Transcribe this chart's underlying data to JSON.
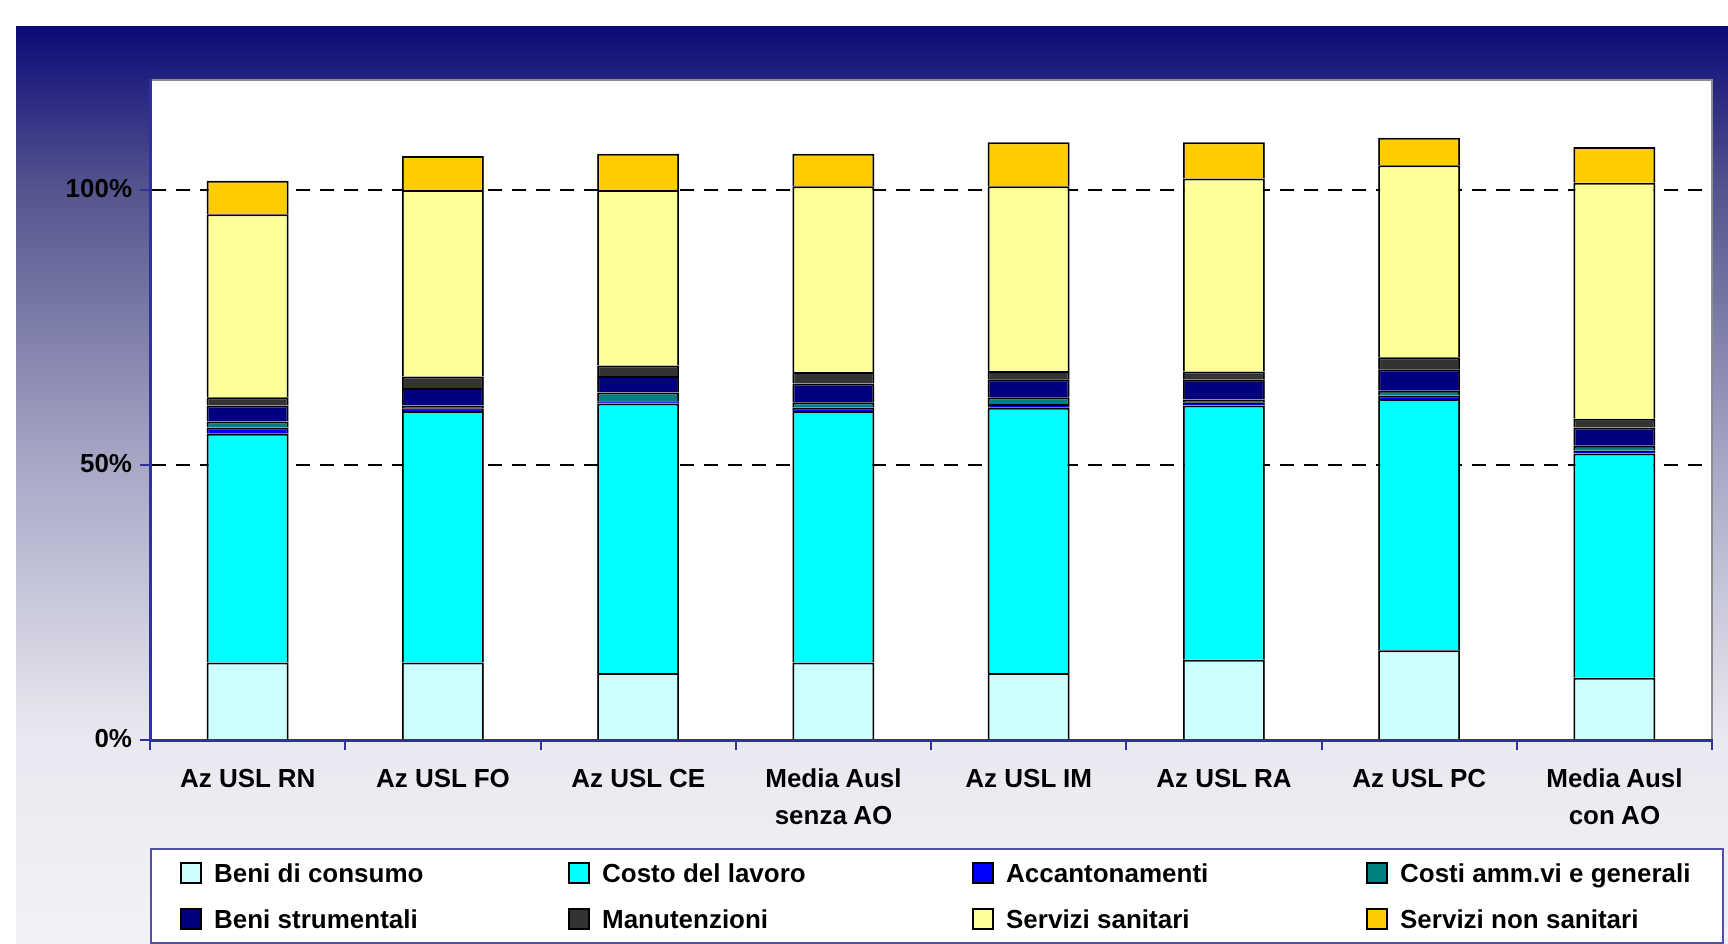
{
  "chart_data": {
    "type": "bar",
    "stacked": true,
    "categories": [
      "Az USL RN",
      "Az USL FO",
      "Az USL CE",
      "Media Ausl senza AO",
      "Az USL IM",
      "Az USL RA",
      "Az USL PC",
      "Media Ausl con AO"
    ],
    "series": [
      {
        "name": "Beni di consumo",
        "color": "#ccffff",
        "values": [
          14.1,
          14.1,
          12.2,
          14.1,
          12.2,
          14.6,
          16.3,
          11.3
        ]
      },
      {
        "name": "Costo del lavoro",
        "color": "#00ffff",
        "values": [
          41.6,
          45.7,
          49.0,
          45.7,
          48.2,
          46.2,
          45.7,
          40.8
        ]
      },
      {
        "name": "Accantonamenti",
        "color": "#0000ff",
        "values": [
          1.1,
          0.5,
          0.4,
          0.6,
          0.7,
          0.6,
          0.6,
          0.5
        ]
      },
      {
        "name": "Costi amm.vi e generali",
        "color": "#008080",
        "values": [
          1.1,
          0.5,
          1.6,
          1.0,
          1.2,
          0.5,
          0.9,
          0.9
        ]
      },
      {
        "name": "Beni strumentali",
        "color": "#000080",
        "values": [
          2.9,
          3.2,
          3.0,
          3.4,
          3.3,
          3.6,
          3.9,
          3.3
        ]
      },
      {
        "name": "Manutenzioni",
        "color": "#333333",
        "values": [
          1.5,
          2.1,
          1.9,
          2.1,
          1.5,
          1.5,
          2.2,
          1.6
        ]
      },
      {
        "name": "Servizi sanitari",
        "color": "#ffff99",
        "values": [
          33.3,
          33.9,
          31.9,
          33.8,
          33.6,
          35.1,
          34.9,
          42.9
        ]
      },
      {
        "name": "Servizi non sanitari",
        "color": "#ffcc00",
        "values": [
          6.1,
          6.2,
          6.6,
          5.9,
          8.0,
          6.6,
          5.0,
          6.5
        ]
      }
    ],
    "ylim": [
      0,
      120
    ],
    "yticks": [
      {
        "value": 0,
        "label": "0%"
      },
      {
        "value": 50,
        "label": "50%"
      },
      {
        "value": 100,
        "label": "100%"
      }
    ],
    "grid": "y",
    "legend": "bottom"
  }
}
